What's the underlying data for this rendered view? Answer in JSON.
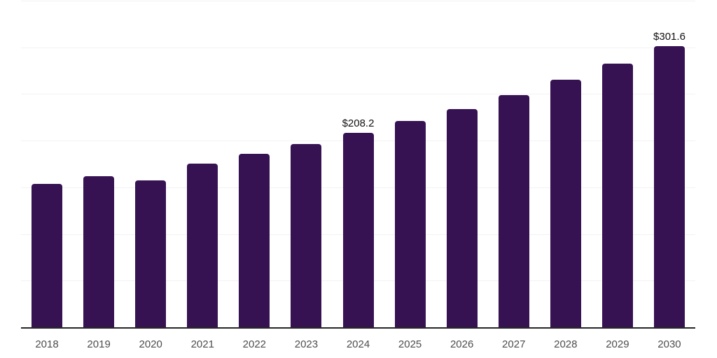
{
  "chart": {
    "background": "#ffffff",
    "bar_color": "#361253",
    "grid_color": "#f2f2f2",
    "axis_color": "#262626",
    "tick_label_color": "#4d4d4d",
    "data_label_color": "#111111"
  },
  "chart_data": {
    "type": "bar",
    "title": "",
    "xlabel": "",
    "ylabel": "",
    "categories": [
      "2018",
      "2019",
      "2020",
      "2021",
      "2022",
      "2023",
      "2024",
      "2025",
      "2026",
      "2027",
      "2028",
      "2029",
      "2030"
    ],
    "values": [
      153.4,
      161.6,
      157.4,
      175.6,
      186.1,
      196.4,
      208.2,
      221.3,
      234.2,
      248.9,
      265.0,
      282.5,
      301.6
    ],
    "data_labels": [
      "",
      "",
      "",
      "",
      "",
      "",
      "$208.2",
      "",
      "",
      "",
      "",
      "",
      "$301.6"
    ],
    "ylim": [
      0,
      350
    ],
    "gridline_step": 50,
    "grid": "horizontal",
    "legend_position": "none"
  }
}
